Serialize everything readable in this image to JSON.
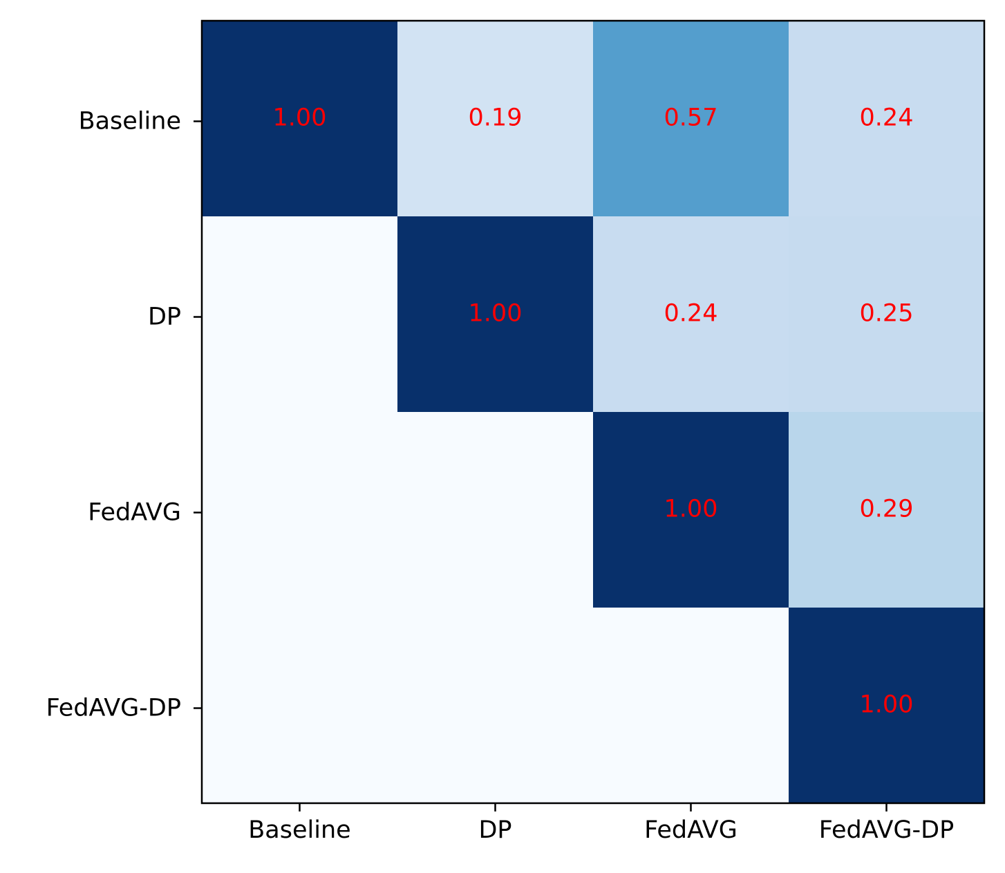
{
  "chart_data": {
    "type": "heatmap",
    "title": "",
    "xlabel": "",
    "ylabel": "",
    "x_categories": [
      "Baseline",
      "DP",
      "FedAVG",
      "FedAVG-DP"
    ],
    "y_categories": [
      "Baseline",
      "DP",
      "FedAVG",
      "FedAVG-DP"
    ],
    "values": [
      [
        1.0,
        0.19,
        0.57,
        0.24
      ],
      [
        0.0,
        1.0,
        0.24,
        0.25
      ],
      [
        0.0,
        0.0,
        1.0,
        0.29
      ],
      [
        0.0,
        0.0,
        0.0,
        1.0
      ]
    ],
    "labels": [
      [
        "1.00",
        "0.19",
        "0.57",
        "0.24"
      ],
      [
        null,
        "1.00",
        "0.24",
        "0.25"
      ],
      [
        null,
        null,
        "1.00",
        "0.29"
      ],
      [
        null,
        null,
        null,
        "1.00"
      ]
    ],
    "colormap": "Blues",
    "value_range": [
      0,
      1
    ],
    "annotation_color": "#ff0000"
  }
}
